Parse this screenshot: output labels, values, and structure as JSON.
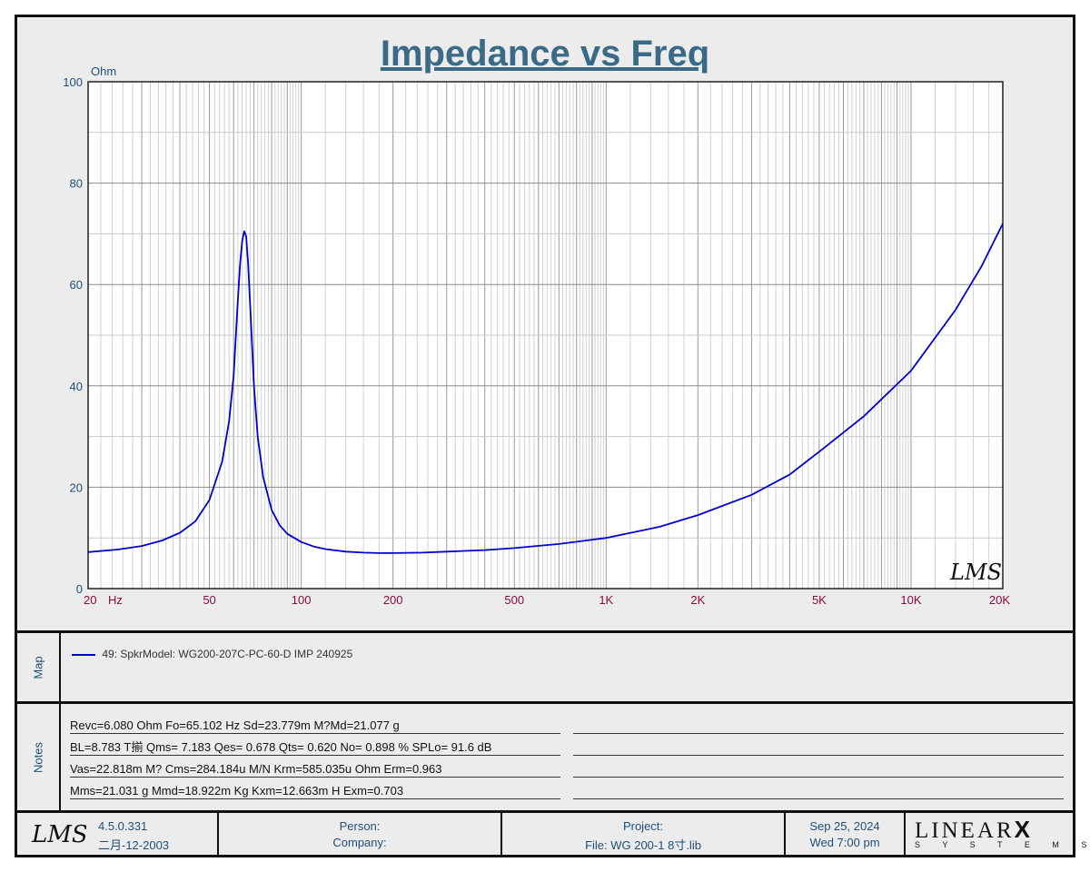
{
  "chart_data": {
    "type": "line",
    "title": "Impedance vs Freq",
    "ylabel": "Ohm",
    "xunit": "Hz",
    "x_scale": "log",
    "xlim": [
      20,
      20000
    ],
    "ylim": [
      0,
      100
    ],
    "y_ticks": [
      0,
      20,
      40,
      60,
      80,
      100
    ],
    "x_ticks": [
      {
        "value": 20,
        "label": "20"
      },
      {
        "value": 50,
        "label": "50"
      },
      {
        "value": 100,
        "label": "100"
      },
      {
        "value": 200,
        "label": "200"
      },
      {
        "value": 500,
        "label": "500"
      },
      {
        "value": 1000,
        "label": "1K"
      },
      {
        "value": 2000,
        "label": "2K"
      },
      {
        "value": 5000,
        "label": "5K"
      },
      {
        "value": 10000,
        "label": "10K"
      },
      {
        "value": 20000,
        "label": "20K"
      }
    ],
    "grid": true,
    "series": [
      {
        "name": "49: SpkrModel: WG200-207C-PC-60-D IMP 240925",
        "color": "#0000cc",
        "x": [
          20,
          25,
          30,
          35,
          40,
          45,
          50,
          55,
          58,
          60,
          62,
          63,
          64,
          65,
          66,
          67,
          68,
          70,
          72,
          75,
          80,
          85,
          90,
          100,
          110,
          120,
          140,
          160,
          180,
          200,
          250,
          300,
          400,
          500,
          700,
          1000,
          1500,
          2000,
          3000,
          4000,
          5000,
          7000,
          10000,
          14000,
          17000,
          20000
        ],
        "y": [
          7.2,
          7.7,
          8.4,
          9.5,
          11.0,
          13.3,
          17.5,
          25.0,
          33.0,
          42.0,
          57.0,
          64.0,
          68.5,
          70.5,
          69.5,
          64.0,
          56.0,
          40.0,
          30.0,
          22.0,
          15.5,
          12.5,
          10.8,
          9.2,
          8.3,
          7.8,
          7.3,
          7.1,
          7.0,
          7.0,
          7.1,
          7.3,
          7.6,
          8.0,
          8.8,
          10.0,
          12.2,
          14.5,
          18.5,
          22.5,
          27.0,
          34.0,
          43.0,
          55.0,
          63.5,
          72.0
        ]
      }
    ]
  },
  "notes": {
    "label": "Notes",
    "lines": [
      "Revc=6.080 Ohm  Fo=65.102 Hz  Sd=23.779m M?Md=21.077 g",
      "BL=8.783 T揃  Qms= 7.183  Qes= 0.678  Qts= 0.620  No= 0.898 %  SPLo= 91.6 dB",
      "Vas=22.818m M? Cms=284.184u M/N  Krm=585.035u Ohm  Erm=0.963",
      "Mms=21.031 g  Mmd=18.922m Kg  Kxm=12.663m H  Exm=0.703"
    ]
  },
  "map": {
    "label": "Map"
  },
  "footer": {
    "version": "4.5.0.331",
    "version_date": "二月-12-2003",
    "person_label": "Person:",
    "company_label": "Company:",
    "project_label": "Project:",
    "file_label": "File: WG 200-1 8寸.lib",
    "date": "Sep 25, 2024",
    "time": "Wed  7:00 pm",
    "brand_top": "LINEAR",
    "brand_x": "X",
    "brand_bottom": "S Y S T E M S",
    "watermark": "LMS"
  }
}
